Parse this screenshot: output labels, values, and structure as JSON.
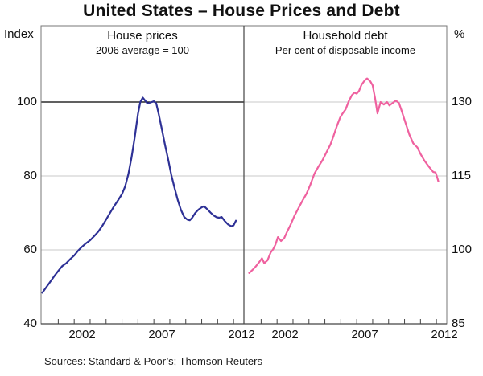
{
  "page": {
    "title": "United States – House Prices and Debt",
    "sources": "Sources: Standard & Poor’s; Thomson Reuters"
  },
  "axes": {
    "left_unit": "Index",
    "right_unit": "%"
  },
  "chart_data": [
    {
      "type": "line",
      "panel": "left",
      "title": "House prices",
      "subtitle": "2006 average = 100",
      "xlim": [
        1999.92,
        2012.65
      ],
      "ylim": [
        40,
        120.65
      ],
      "yticks": [
        40,
        60,
        80,
        100
      ],
      "gridlines": [
        60,
        80
      ],
      "reference_line": 100,
      "year_ticks": [
        2000,
        2001,
        2002,
        2003,
        2004,
        2005,
        2006,
        2007,
        2008,
        2009,
        2010,
        2011,
        2012
      ],
      "xtick_labels": [
        {
          "year": 2002.5,
          "label": "2002"
        },
        {
          "year": 2007.5,
          "label": "2007"
        },
        {
          "year": 2012.5,
          "label": "2012"
        }
      ],
      "series": [
        {
          "name": "House prices (2006 average = 100)",
          "color": "#2e3196",
          "points": [
            [
              2000.0,
              48.4
            ],
            [
              2000.25,
              49.9
            ],
            [
              2000.5,
              51.4
            ],
            [
              2000.75,
              52.9
            ],
            [
              2001.0,
              54.3
            ],
            [
              2001.25,
              55.6
            ],
            [
              2001.5,
              56.4
            ],
            [
              2001.75,
              57.5
            ],
            [
              2002.0,
              58.5
            ],
            [
              2002.25,
              59.8
            ],
            [
              2002.5,
              60.9
            ],
            [
              2002.75,
              61.8
            ],
            [
              2003.0,
              62.6
            ],
            [
              2003.25,
              63.7
            ],
            [
              2003.5,
              64.9
            ],
            [
              2003.75,
              66.4
            ],
            [
              2004.0,
              68.2
            ],
            [
              2004.25,
              70.0
            ],
            [
              2004.5,
              71.8
            ],
            [
              2004.75,
              73.4
            ],
            [
              2005.0,
              75.1
            ],
            [
              2005.2,
              77.2
            ],
            [
              2005.4,
              80.5
            ],
            [
              2005.6,
              85.0
            ],
            [
              2005.8,
              90.5
            ],
            [
              2006.0,
              96.8
            ],
            [
              2006.15,
              100.0
            ],
            [
              2006.3,
              101.2
            ],
            [
              2006.45,
              100.4
            ],
            [
              2006.6,
              99.6
            ],
            [
              2006.8,
              99.9
            ],
            [
              2007.0,
              100.2
            ],
            [
              2007.15,
              99.6
            ],
            [
              2007.3,
              96.8
            ],
            [
              2007.5,
              92.6
            ],
            [
              2007.7,
              88.4
            ],
            [
              2007.9,
              84.4
            ],
            [
              2008.1,
              80.2
            ],
            [
              2008.3,
              76.7
            ],
            [
              2008.5,
              73.5
            ],
            [
              2008.7,
              70.8
            ],
            [
              2008.9,
              68.9
            ],
            [
              2009.1,
              68.2
            ],
            [
              2009.25,
              68.0
            ],
            [
              2009.4,
              68.7
            ],
            [
              2009.6,
              70.0
            ],
            [
              2009.8,
              70.9
            ],
            [
              2010.0,
              71.5
            ],
            [
              2010.15,
              71.8
            ],
            [
              2010.35,
              71.0
            ],
            [
              2010.55,
              70.1
            ],
            [
              2010.75,
              69.3
            ],
            [
              2010.95,
              68.8
            ],
            [
              2011.1,
              68.7
            ],
            [
              2011.25,
              68.9
            ],
            [
              2011.45,
              67.8
            ],
            [
              2011.65,
              66.9
            ],
            [
              2011.85,
              66.4
            ],
            [
              2012.0,
              66.6
            ],
            [
              2012.15,
              67.9
            ]
          ]
        }
      ]
    },
    {
      "type": "line",
      "panel": "right",
      "title": "Household debt",
      "subtitle": "Per cent of disposable income",
      "xlim": [
        1999.92,
        2012.65
      ],
      "ylim": [
        85,
        145.49
      ],
      "yticks": [
        85,
        100,
        115,
        130
      ],
      "gridlines": [
        100,
        115,
        130
      ],
      "reference_line": null,
      "year_ticks": [
        2000,
        2001,
        2002,
        2003,
        2004,
        2005,
        2006,
        2007,
        2008,
        2009,
        2010,
        2011,
        2012
      ],
      "xtick_labels": [
        {
          "year": 2002.5,
          "label": "2002"
        },
        {
          "year": 2007.5,
          "label": "2007"
        },
        {
          "year": 2012.5,
          "label": "2012"
        }
      ],
      "series": [
        {
          "name": "Household debt (per cent of disposable income)",
          "color": "#ef619f",
          "points": [
            [
              2000.25,
              95.3
            ],
            [
              2000.45,
              95.9
            ],
            [
              2000.65,
              96.6
            ],
            [
              2000.9,
              97.6
            ],
            [
              2001.05,
              98.3
            ],
            [
              2001.2,
              97.3
            ],
            [
              2001.4,
              97.9
            ],
            [
              2001.6,
              99.5
            ],
            [
              2001.75,
              100.1
            ],
            [
              2001.9,
              101.1
            ],
            [
              2002.05,
              102.6
            ],
            [
              2002.25,
              101.8
            ],
            [
              2002.45,
              102.4
            ],
            [
              2002.65,
              103.8
            ],
            [
              2002.85,
              105.1
            ],
            [
              2003.1,
              107.0
            ],
            [
              2003.35,
              108.5
            ],
            [
              2003.6,
              110.0
            ],
            [
              2003.85,
              111.4
            ],
            [
              2004.1,
              113.3
            ],
            [
              2004.35,
              115.5
            ],
            [
              2004.6,
              116.9
            ],
            [
              2004.85,
              118.2
            ],
            [
              2005.1,
              119.8
            ],
            [
              2005.35,
              121.4
            ],
            [
              2005.55,
              123.2
            ],
            [
              2005.75,
              125.1
            ],
            [
              2005.95,
              126.8
            ],
            [
              2006.1,
              127.6
            ],
            [
              2006.3,
              128.5
            ],
            [
              2006.5,
              130.2
            ],
            [
              2006.7,
              131.4
            ],
            [
              2006.85,
              131.9
            ],
            [
              2007.0,
              131.7
            ],
            [
              2007.15,
              132.3
            ],
            [
              2007.3,
              133.5
            ],
            [
              2007.5,
              134.4
            ],
            [
              2007.65,
              134.8
            ],
            [
              2007.85,
              134.2
            ],
            [
              2008.0,
              133.4
            ],
            [
              2008.15,
              130.8
            ],
            [
              2008.3,
              127.7
            ],
            [
              2008.5,
              130.0
            ],
            [
              2008.7,
              129.5
            ],
            [
              2008.9,
              130.0
            ],
            [
              2009.05,
              129.3
            ],
            [
              2009.25,
              129.8
            ],
            [
              2009.45,
              130.3
            ],
            [
              2009.65,
              129.8
            ],
            [
              2009.85,
              127.9
            ],
            [
              2010.05,
              125.9
            ],
            [
              2010.3,
              123.4
            ],
            [
              2010.55,
              121.6
            ],
            [
              2010.8,
              120.8
            ],
            [
              2011.0,
              119.5
            ],
            [
              2011.25,
              118.1
            ],
            [
              2011.5,
              117.0
            ],
            [
              2011.65,
              116.4
            ],
            [
              2011.8,
              115.8
            ],
            [
              2011.95,
              115.7
            ],
            [
              2012.05,
              114.7
            ],
            [
              2012.12,
              113.9
            ]
          ]
        }
      ]
    }
  ],
  "style": {
    "grid_color": "#c9c9c9",
    "frame_color": "#777777",
    "axis_color": "#444444",
    "reference_line_color": "#000000"
  }
}
